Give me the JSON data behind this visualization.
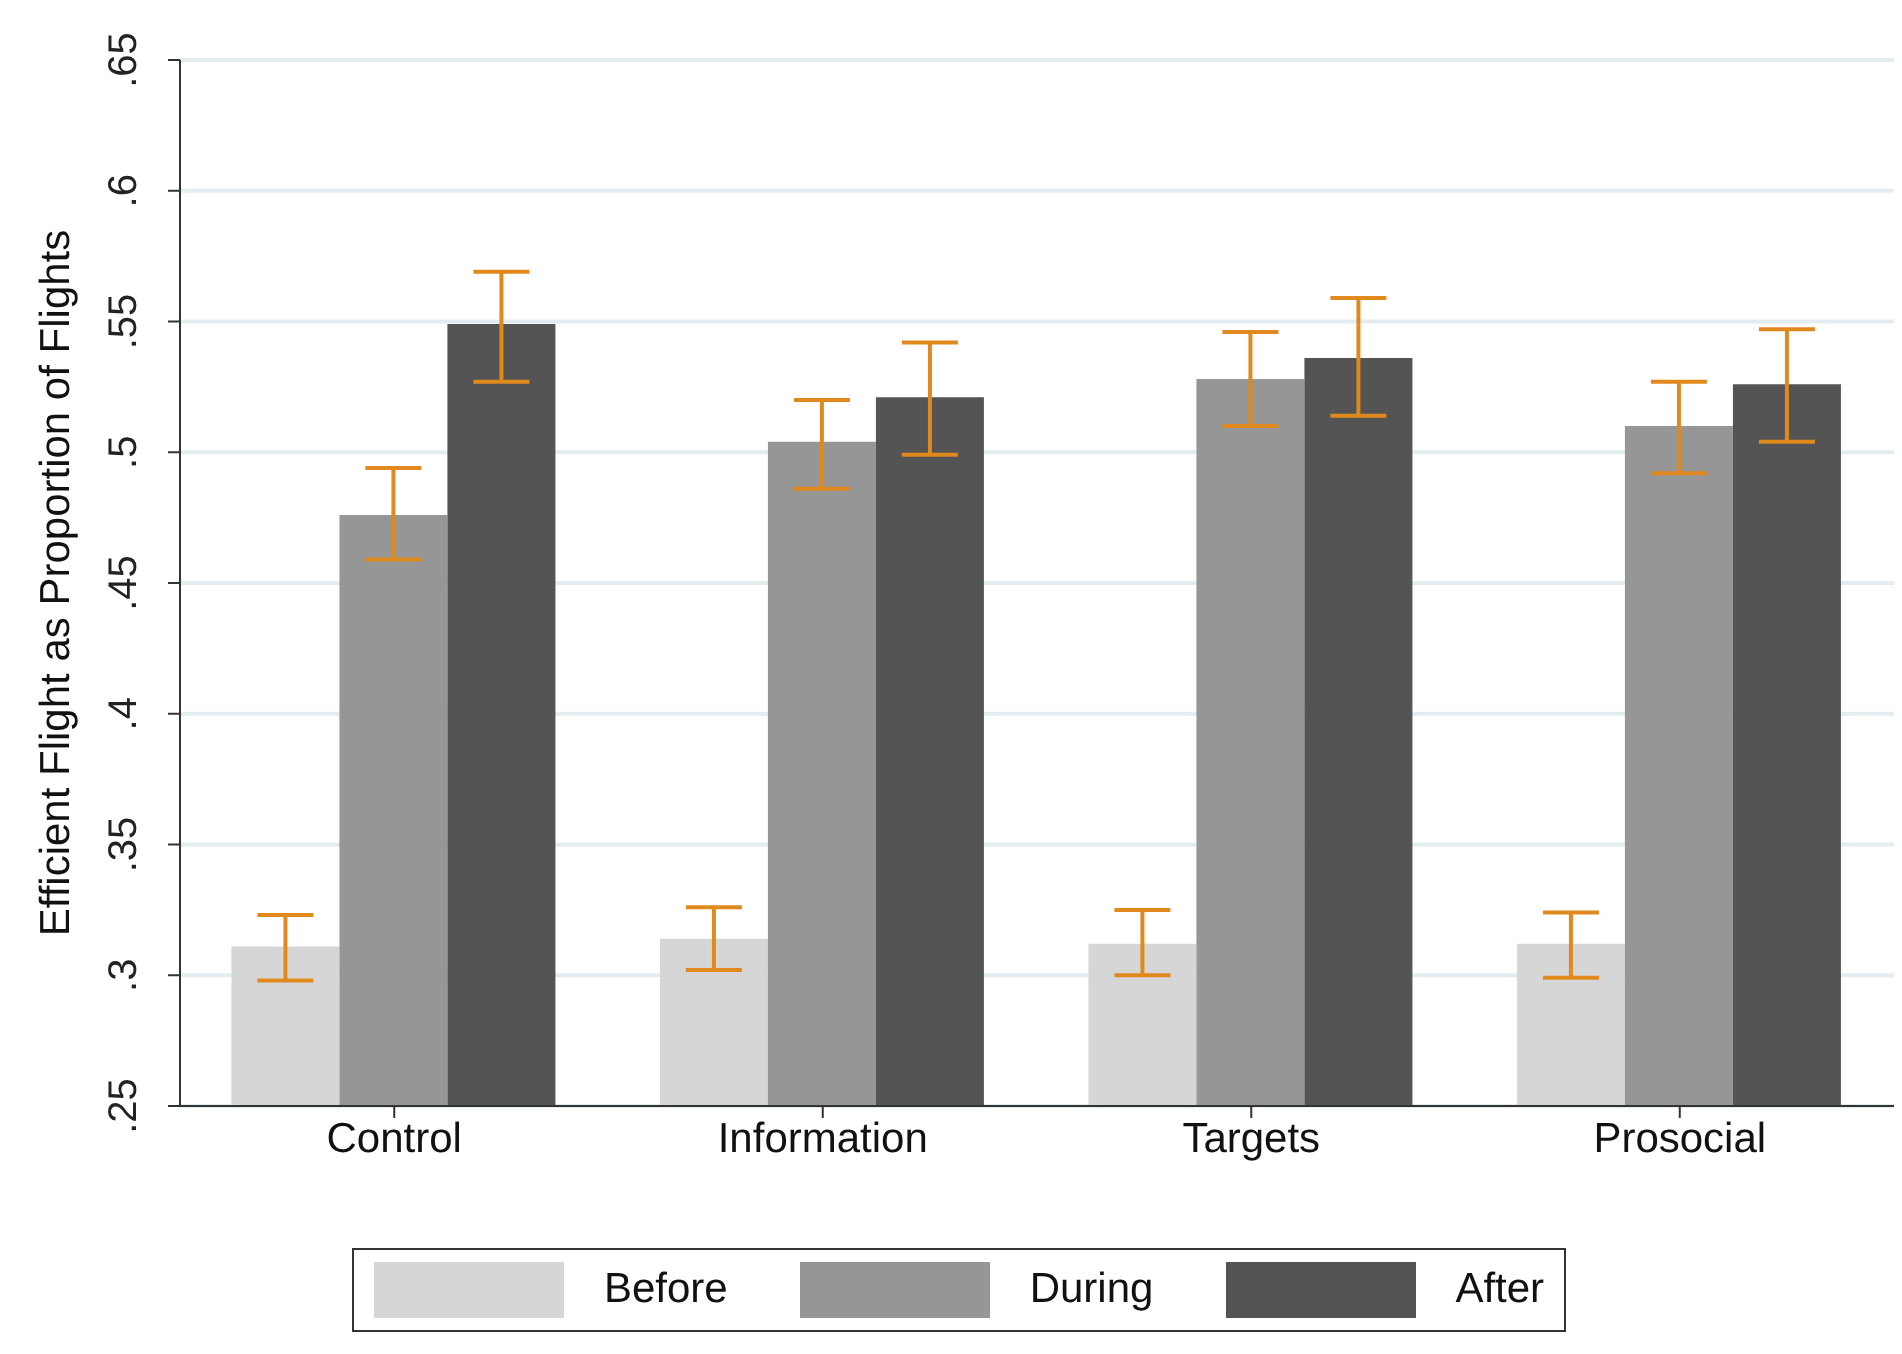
{
  "chart_data": {
    "type": "bar",
    "ylabel": "Efficient Flight as Proportion of Flights",
    "categories": [
      "Control",
      "Information",
      "Targets",
      "Prosocial"
    ],
    "series": [
      {
        "name": "Before",
        "color": "#d6d6d6",
        "values": [
          0.311,
          0.314,
          0.312,
          0.312
        ],
        "errors": [
          [
            0.298,
            0.323
          ],
          [
            0.302,
            0.326
          ],
          [
            0.3,
            0.325
          ],
          [
            0.299,
            0.324
          ]
        ]
      },
      {
        "name": "During",
        "color": "#969696",
        "values": [
          0.476,
          0.504,
          0.528,
          0.51
        ],
        "errors": [
          [
            0.459,
            0.494
          ],
          [
            0.486,
            0.52
          ],
          [
            0.51,
            0.546
          ],
          [
            0.492,
            0.527
          ]
        ]
      },
      {
        "name": "After",
        "color": "#545454",
        "values": [
          0.549,
          0.521,
          0.536,
          0.526
        ],
        "errors": [
          [
            0.527,
            0.569
          ],
          [
            0.499,
            0.542
          ],
          [
            0.514,
            0.559
          ],
          [
            0.504,
            0.547
          ]
        ]
      }
    ],
    "ylim": [
      0.25,
      0.65
    ],
    "yticks": [
      {
        "value": 0.25,
        "label": ".25"
      },
      {
        "value": 0.3,
        "label": ".3"
      },
      {
        "value": 0.35,
        "label": ".35"
      },
      {
        "value": 0.4,
        "label": ".4"
      },
      {
        "value": 0.45,
        "label": ".45"
      },
      {
        "value": 0.5,
        "label": ".5"
      },
      {
        "value": 0.55,
        "label": ".55"
      },
      {
        "value": 0.6,
        "label": ".6"
      },
      {
        "value": 0.65,
        "label": ".65"
      }
    ],
    "grid": "y",
    "legend": "bottom"
  }
}
